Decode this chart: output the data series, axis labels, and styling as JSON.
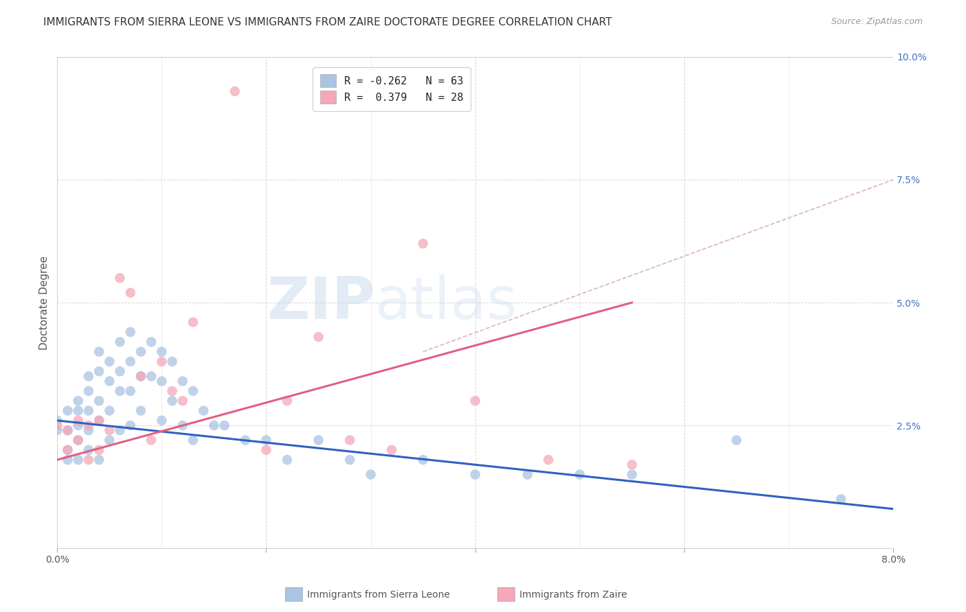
{
  "title": "IMMIGRANTS FROM SIERRA LEONE VS IMMIGRANTS FROM ZAIRE DOCTORATE DEGREE CORRELATION CHART",
  "source": "Source: ZipAtlas.com",
  "ylabel": "Doctorate Degree",
  "xlim": [
    0.0,
    0.08
  ],
  "ylim": [
    0.0,
    0.1
  ],
  "watermark_zip": "ZIP",
  "watermark_atlas": "atlas",
  "legend_line1": "R = -0.262   N = 63",
  "legend_line2": "R =  0.379   N = 28",
  "series1_label": "Immigrants from Sierra Leone",
  "series2_label": "Immigrants from Zaire",
  "color1": "#aac4e2",
  "color2": "#f4a8b8",
  "line1_color": "#3060c0",
  "line2_color": "#e06080",
  "dash_line_color": "#d0a0b0",
  "grid_color": "#cccccc",
  "background_color": "#ffffff",
  "title_fontsize": 11,
  "ylabel_fontsize": 11,
  "tick_fontsize": 10,
  "legend_fontsize": 11,
  "blue_line_x0": 0.0,
  "blue_line_y0": 0.026,
  "blue_line_x1": 0.08,
  "blue_line_y1": 0.008,
  "pink_line_x0": 0.0,
  "pink_line_y0": 0.018,
  "pink_line_x1": 0.055,
  "pink_line_y1": 0.05,
  "dash_line_x0": 0.035,
  "dash_line_y0": 0.04,
  "dash_line_x1": 0.08,
  "dash_line_y1": 0.075
}
